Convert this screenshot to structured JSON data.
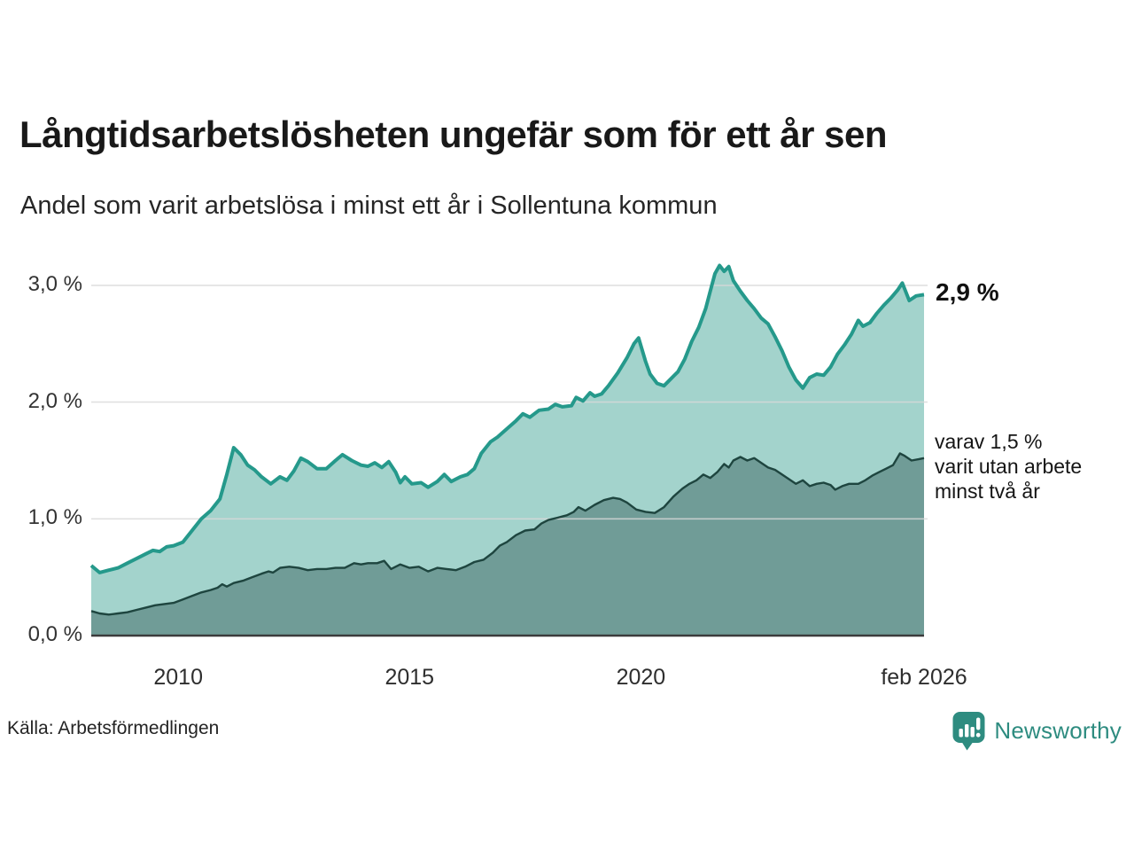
{
  "header": {
    "title": "Långtidsarbetslösheten ungefär som för ett år sen",
    "subtitle": "Andel som varit arbetslösa i minst ett år i Sollentuna kommun"
  },
  "chart_data": {
    "type": "area",
    "x_domain": [
      2008.12,
      2026.12
    ],
    "y_domain": [
      0,
      3.2
    ],
    "grid": true,
    "y_ticks": [
      {
        "label": "0,0 %",
        "value": 0.0
      },
      {
        "label": "1,0 %",
        "value": 1.0
      },
      {
        "label": "2,0 %",
        "value": 2.0
      },
      {
        "label": "3,0 %",
        "value": 3.0
      }
    ],
    "x_ticks": [
      {
        "label": "2010",
        "value": 2010
      },
      {
        "label": "2015",
        "value": 2015
      },
      {
        "label": "2020",
        "value": 2020
      },
      {
        "label": "feb 2026",
        "value": 2026.12
      }
    ],
    "colors": {
      "total_line": "#25998b",
      "total_fill": "#a3d3cc",
      "two_year_line": "#1e453f",
      "two_year_fill": "#709c97",
      "gridline": "#d9d9d9",
      "axis_line": "#3c3c3c"
    },
    "series": [
      {
        "name": "arbetslösa minst ett år (totalt)",
        "points": [
          [
            2008.12,
            0.6
          ],
          [
            2008.3,
            0.54
          ],
          [
            2008.5,
            0.56
          ],
          [
            2008.7,
            0.58
          ],
          [
            2008.9,
            0.62
          ],
          [
            2009.1,
            0.66
          ],
          [
            2009.3,
            0.7
          ],
          [
            2009.45,
            0.73
          ],
          [
            2009.6,
            0.72
          ],
          [
            2009.75,
            0.76
          ],
          [
            2009.9,
            0.77
          ],
          [
            2010.1,
            0.8
          ],
          [
            2010.3,
            0.9
          ],
          [
            2010.5,
            1.0
          ],
          [
            2010.7,
            1.07
          ],
          [
            2010.9,
            1.17
          ],
          [
            2011.05,
            1.38
          ],
          [
            2011.2,
            1.61
          ],
          [
            2011.35,
            1.55
          ],
          [
            2011.5,
            1.46
          ],
          [
            2011.65,
            1.42
          ],
          [
            2011.8,
            1.36
          ],
          [
            2012.0,
            1.3
          ],
          [
            2012.2,
            1.36
          ],
          [
            2012.35,
            1.33
          ],
          [
            2012.5,
            1.41
          ],
          [
            2012.65,
            1.52
          ],
          [
            2012.8,
            1.49
          ],
          [
            2013.0,
            1.43
          ],
          [
            2013.2,
            1.43
          ],
          [
            2013.4,
            1.5
          ],
          [
            2013.55,
            1.55
          ],
          [
            2013.75,
            1.5
          ],
          [
            2013.95,
            1.46
          ],
          [
            2014.1,
            1.45
          ],
          [
            2014.25,
            1.48
          ],
          [
            2014.4,
            1.44
          ],
          [
            2014.55,
            1.49
          ],
          [
            2014.7,
            1.4
          ],
          [
            2014.8,
            1.31
          ],
          [
            2014.9,
            1.36
          ],
          [
            2015.05,
            1.3
          ],
          [
            2015.25,
            1.31
          ],
          [
            2015.4,
            1.27
          ],
          [
            2015.6,
            1.32
          ],
          [
            2015.75,
            1.38
          ],
          [
            2015.9,
            1.32
          ],
          [
            2016.1,
            1.36
          ],
          [
            2016.25,
            1.38
          ],
          [
            2016.4,
            1.43
          ],
          [
            2016.55,
            1.56
          ],
          [
            2016.75,
            1.66
          ],
          [
            2016.9,
            1.7
          ],
          [
            2017.1,
            1.77
          ],
          [
            2017.3,
            1.84
          ],
          [
            2017.45,
            1.9
          ],
          [
            2017.6,
            1.87
          ],
          [
            2017.8,
            1.93
          ],
          [
            2018.0,
            1.94
          ],
          [
            2018.15,
            1.98
          ],
          [
            2018.3,
            1.96
          ],
          [
            2018.5,
            1.97
          ],
          [
            2018.6,
            2.04
          ],
          [
            2018.75,
            2.01
          ],
          [
            2018.9,
            2.08
          ],
          [
            2019.0,
            2.05
          ],
          [
            2019.15,
            2.07
          ],
          [
            2019.3,
            2.14
          ],
          [
            2019.5,
            2.25
          ],
          [
            2019.7,
            2.38
          ],
          [
            2019.85,
            2.5
          ],
          [
            2019.95,
            2.55
          ],
          [
            2020.1,
            2.35
          ],
          [
            2020.2,
            2.24
          ],
          [
            2020.35,
            2.16
          ],
          [
            2020.5,
            2.14
          ],
          [
            2020.65,
            2.2
          ],
          [
            2020.8,
            2.26
          ],
          [
            2020.95,
            2.37
          ],
          [
            2021.1,
            2.52
          ],
          [
            2021.25,
            2.64
          ],
          [
            2021.4,
            2.8
          ],
          [
            2021.5,
            2.95
          ],
          [
            2021.6,
            3.1
          ],
          [
            2021.7,
            3.17
          ],
          [
            2021.8,
            3.12
          ],
          [
            2021.9,
            3.16
          ],
          [
            2022.0,
            3.04
          ],
          [
            2022.15,
            2.95
          ],
          [
            2022.3,
            2.87
          ],
          [
            2022.45,
            2.8
          ],
          [
            2022.6,
            2.72
          ],
          [
            2022.75,
            2.67
          ],
          [
            2022.9,
            2.56
          ],
          [
            2023.05,
            2.44
          ],
          [
            2023.2,
            2.3
          ],
          [
            2023.35,
            2.19
          ],
          [
            2023.5,
            2.12
          ],
          [
            2023.65,
            2.21
          ],
          [
            2023.8,
            2.24
          ],
          [
            2023.95,
            2.23
          ],
          [
            2024.1,
            2.3
          ],
          [
            2024.25,
            2.41
          ],
          [
            2024.4,
            2.49
          ],
          [
            2024.55,
            2.58
          ],
          [
            2024.7,
            2.7
          ],
          [
            2024.8,
            2.65
          ],
          [
            2024.95,
            2.68
          ],
          [
            2025.1,
            2.76
          ],
          [
            2025.25,
            2.83
          ],
          [
            2025.4,
            2.89
          ],
          [
            2025.55,
            2.96
          ],
          [
            2025.65,
            3.02
          ],
          [
            2025.8,
            2.87
          ],
          [
            2025.95,
            2.91
          ],
          [
            2026.12,
            2.92
          ]
        ]
      },
      {
        "name": "varav utan arbete minst två år",
        "points": [
          [
            2008.12,
            0.21
          ],
          [
            2008.3,
            0.19
          ],
          [
            2008.5,
            0.18
          ],
          [
            2008.7,
            0.19
          ],
          [
            2008.9,
            0.2
          ],
          [
            2009.1,
            0.22
          ],
          [
            2009.3,
            0.24
          ],
          [
            2009.5,
            0.26
          ],
          [
            2009.7,
            0.27
          ],
          [
            2009.9,
            0.28
          ],
          [
            2010.1,
            0.31
          ],
          [
            2010.3,
            0.34
          ],
          [
            2010.5,
            0.37
          ],
          [
            2010.7,
            0.39
          ],
          [
            2010.85,
            0.41
          ],
          [
            2010.95,
            0.44
          ],
          [
            2011.05,
            0.42
          ],
          [
            2011.2,
            0.45
          ],
          [
            2011.4,
            0.47
          ],
          [
            2011.6,
            0.5
          ],
          [
            2011.8,
            0.53
          ],
          [
            2011.95,
            0.55
          ],
          [
            2012.05,
            0.54
          ],
          [
            2012.2,
            0.58
          ],
          [
            2012.4,
            0.59
          ],
          [
            2012.6,
            0.58
          ],
          [
            2012.8,
            0.56
          ],
          [
            2013.0,
            0.57
          ],
          [
            2013.2,
            0.57
          ],
          [
            2013.4,
            0.58
          ],
          [
            2013.6,
            0.58
          ],
          [
            2013.8,
            0.62
          ],
          [
            2013.95,
            0.61
          ],
          [
            2014.1,
            0.62
          ],
          [
            2014.3,
            0.62
          ],
          [
            2014.45,
            0.64
          ],
          [
            2014.6,
            0.57
          ],
          [
            2014.8,
            0.61
          ],
          [
            2015.0,
            0.58
          ],
          [
            2015.2,
            0.59
          ],
          [
            2015.4,
            0.55
          ],
          [
            2015.6,
            0.58
          ],
          [
            2015.8,
            0.57
          ],
          [
            2016.0,
            0.56
          ],
          [
            2016.2,
            0.59
          ],
          [
            2016.4,
            0.63
          ],
          [
            2016.6,
            0.65
          ],
          [
            2016.8,
            0.71
          ],
          [
            2016.95,
            0.77
          ],
          [
            2017.1,
            0.8
          ],
          [
            2017.3,
            0.86
          ],
          [
            2017.5,
            0.9
          ],
          [
            2017.7,
            0.91
          ],
          [
            2017.85,
            0.96
          ],
          [
            2018.0,
            0.99
          ],
          [
            2018.2,
            1.01
          ],
          [
            2018.4,
            1.03
          ],
          [
            2018.55,
            1.06
          ],
          [
            2018.65,
            1.1
          ],
          [
            2018.8,
            1.07
          ],
          [
            2019.0,
            1.12
          ],
          [
            2019.2,
            1.16
          ],
          [
            2019.4,
            1.18
          ],
          [
            2019.55,
            1.17
          ],
          [
            2019.7,
            1.14
          ],
          [
            2019.9,
            1.08
          ],
          [
            2020.1,
            1.06
          ],
          [
            2020.3,
            1.05
          ],
          [
            2020.5,
            1.1
          ],
          [
            2020.7,
            1.19
          ],
          [
            2020.9,
            1.26
          ],
          [
            2021.05,
            1.3
          ],
          [
            2021.2,
            1.33
          ],
          [
            2021.35,
            1.38
          ],
          [
            2021.5,
            1.35
          ],
          [
            2021.65,
            1.4
          ],
          [
            2021.8,
            1.47
          ],
          [
            2021.9,
            1.44
          ],
          [
            2022.0,
            1.5
          ],
          [
            2022.15,
            1.53
          ],
          [
            2022.3,
            1.5
          ],
          [
            2022.45,
            1.52
          ],
          [
            2022.6,
            1.48
          ],
          [
            2022.75,
            1.44
          ],
          [
            2022.9,
            1.42
          ],
          [
            2023.05,
            1.38
          ],
          [
            2023.2,
            1.34
          ],
          [
            2023.35,
            1.3
          ],
          [
            2023.5,
            1.33
          ],
          [
            2023.65,
            1.28
          ],
          [
            2023.8,
            1.3
          ],
          [
            2023.95,
            1.31
          ],
          [
            2024.1,
            1.29
          ],
          [
            2024.2,
            1.25
          ],
          [
            2024.35,
            1.28
          ],
          [
            2024.5,
            1.3
          ],
          [
            2024.7,
            1.3
          ],
          [
            2024.85,
            1.33
          ],
          [
            2025.0,
            1.37
          ],
          [
            2025.15,
            1.4
          ],
          [
            2025.3,
            1.43
          ],
          [
            2025.45,
            1.46
          ],
          [
            2025.6,
            1.56
          ],
          [
            2025.7,
            1.54
          ],
          [
            2025.85,
            1.5
          ],
          [
            2026.0,
            1.51
          ],
          [
            2026.12,
            1.52
          ]
        ]
      }
    ],
    "end_labels": {
      "value_label": "2,9 %",
      "detail_lines": [
        "varav 1,5 %",
        "varit utan arbete",
        "minst två år"
      ]
    }
  },
  "footer": {
    "source": "Källa: Arbetsförmedlingen",
    "brand": "Newsworthy",
    "brand_color": "#2e8c80"
  }
}
